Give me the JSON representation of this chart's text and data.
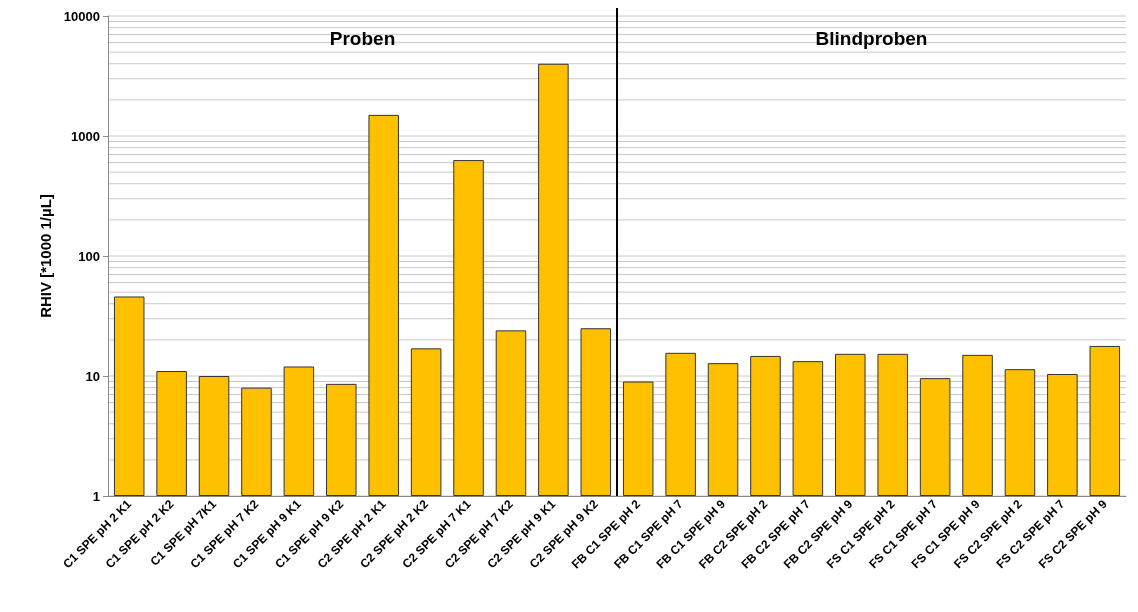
{
  "chart_data": {
    "type": "bar",
    "ylabel": "RHIV [*1000 1/µL]",
    "categories": [
      "C1 SPE pH 2 K1",
      "C1 SPE pH 2 K2",
      "C1 SPE pH 7K1",
      "C1 SPE pH 7 K2",
      "C1 SPE pH 9 K1",
      "C1 SPE pH 9 K2",
      "C2 SPE pH 2 K1",
      "C2 SPE pH 2 K2",
      "C2 SPE pH 7 K1",
      "C2 SPE pH 7 K2",
      "C2 SPE pH 9 K1",
      "C2 SPE pH 9 K2",
      "FB C1 SPE pH 2",
      "FB C1 SPE pH 7",
      "FB C1 SPE pH 9",
      "FB C2 SPE pH 2",
      "FB C2 SPE pH 7",
      "FB C2 SPE pH 9",
      "FS C1 SPE pH 2",
      "FS C1 SPE pH 7",
      "FS C1 SPE pH 9",
      "FS C2 SPE pH 2",
      "FS C2 SPE pH 7",
      "FS C2 SPE pH 9"
    ],
    "values": [
      46,
      11,
      10,
      8,
      12,
      8.6,
      1500,
      17,
      630,
      24,
      4000,
      25,
      9,
      15.6,
      12.8,
      14.7,
      13.3,
      15.3,
      15.3,
      9.6,
      15,
      11.4,
      10.4,
      17.8
    ],
    "color": "#ffc000",
    "log": "y",
    "ylim": [
      1,
      10000
    ],
    "yticks": [
      1,
      {
        "value": 2,
        "label": null
      },
      {
        "value": 3,
        "label": null
      },
      {
        "value": 4,
        "label": null
      },
      {
        "value": 5,
        "label": null
      },
      {
        "value": 6,
        "label": null
      },
      {
        "value": 7,
        "label": null
      },
      {
        "value": 8,
        "label": null
      },
      {
        "value": 9,
        "label": null
      },
      10,
      {
        "value": 20,
        "label": null
      },
      {
        "value": 30,
        "label": null
      },
      {
        "value": 40,
        "label": null
      },
      {
        "value": 50,
        "label": null
      },
      {
        "value": 60,
        "label": null
      },
      {
        "value": 70,
        "label": null
      },
      {
        "value": 80,
        "label": null
      },
      {
        "value": 90,
        "label": null
      },
      100,
      {
        "value": 200,
        "label": null
      },
      {
        "value": 300,
        "label": null
      },
      {
        "value": 400,
        "label": null
      },
      {
        "value": 500,
        "label": null
      },
      {
        "value": 600,
        "label": null
      },
      {
        "value": 700,
        "label": null
      },
      {
        "value": 800,
        "label": null
      },
      {
        "value": 900,
        "label": null
      },
      1000,
      {
        "value": 2000,
        "label": null
      },
      {
        "value": 3000,
        "label": null
      },
      {
        "value": 4000,
        "label": null
      },
      {
        "value": 5000,
        "label": null
      },
      {
        "value": 6000,
        "label": null
      },
      {
        "value": 7000,
        "label": null
      },
      {
        "value": 8000,
        "label": null
      },
      {
        "value": 9000,
        "label": null
      },
      10000
    ],
    "grid": "y",
    "ref_lines": [
      {
        "axis": "x",
        "value": "FB C1 SPE pH 2",
        "color": "#000000"
      }
    ],
    "annotations": [
      "Proben",
      "Blindproben"
    ]
  }
}
